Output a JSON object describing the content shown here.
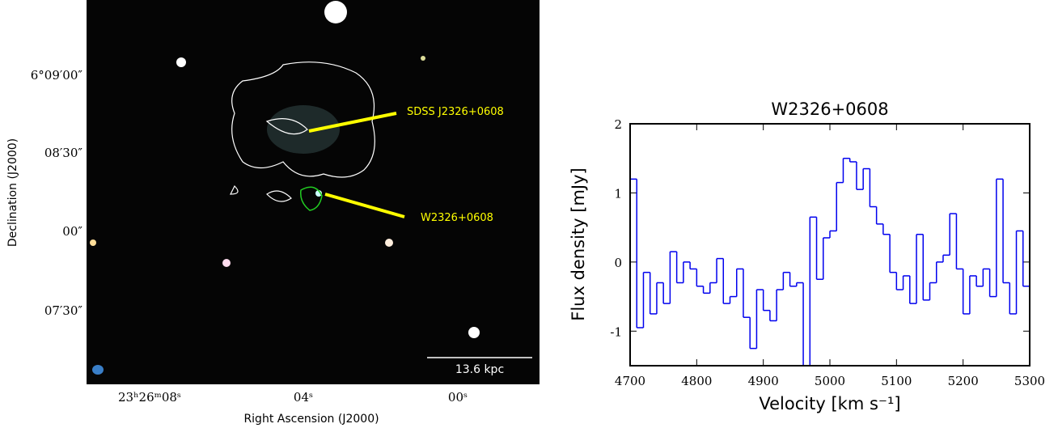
{
  "image_panel": {
    "annotations": [
      "SDSS J2326+0608",
      "W2326+0608"
    ],
    "scale_bar": "13.6 kpc",
    "x_label": "Right Ascension (J2000)",
    "y_label": "Declination (J2000)",
    "x_tick_labels": [
      "23ʰ26ᵐ08ˢ",
      "04ˢ",
      "00ˢ"
    ],
    "y_tick_labels": [
      "6°09′00″",
      "08′30″",
      "00″",
      "07′30″"
    ]
  },
  "chart_data": {
    "type": "step",
    "title": "W2326+0608",
    "x_label": "Velocity [km s⁻¹]",
    "y_label": "Flux density [mJy]",
    "x": [
      4705,
      4715,
      4725,
      4735,
      4745,
      4755,
      4765,
      4775,
      4785,
      4795,
      4805,
      4815,
      4825,
      4835,
      4845,
      4855,
      4865,
      4875,
      4885,
      4895,
      4905,
      4915,
      4925,
      4935,
      4945,
      4955,
      4965,
      4975,
      4985,
      4995,
      5005,
      5015,
      5025,
      5035,
      5045,
      5055,
      5065,
      5075,
      5085,
      5095,
      5105,
      5115,
      5125,
      5135,
      5145,
      5155,
      5165,
      5175,
      5185,
      5195,
      5205,
      5215,
      5225,
      5235,
      5245,
      5255,
      5265,
      5275,
      5285,
      5295
    ],
    "values": [
      1.2,
      -0.95,
      -0.15,
      -0.75,
      -0.3,
      -0.6,
      0.15,
      -0.3,
      0.0,
      -0.1,
      -0.35,
      -0.45,
      -0.3,
      0.05,
      -0.6,
      -0.5,
      -0.1,
      -0.8,
      -1.25,
      -0.4,
      -0.7,
      -0.85,
      -0.4,
      -0.15,
      -0.35,
      -0.3,
      -1.5,
      0.65,
      -0.25,
      0.35,
      0.45,
      1.15,
      1.5,
      1.45,
      1.05,
      1.35,
      0.8,
      0.55,
      0.4,
      -0.15,
      -0.4,
      -0.2,
      -0.6,
      0.4,
      -0.55,
      -0.3,
      0.0,
      0.1,
      0.7,
      -0.1,
      -0.75,
      -0.2,
      -0.35,
      -0.1,
      -0.5,
      1.2,
      -0.3,
      -0.75,
      0.45,
      -0.35
    ],
    "color": "#0000ee",
    "xlim": [
      4700,
      5300
    ],
    "xticks": [
      4700,
      4800,
      4900,
      5000,
      5100,
      5200,
      5300
    ],
    "ylim": [
      -1.5,
      2
    ],
    "yticks": [
      -1,
      0,
      1,
      2
    ]
  }
}
